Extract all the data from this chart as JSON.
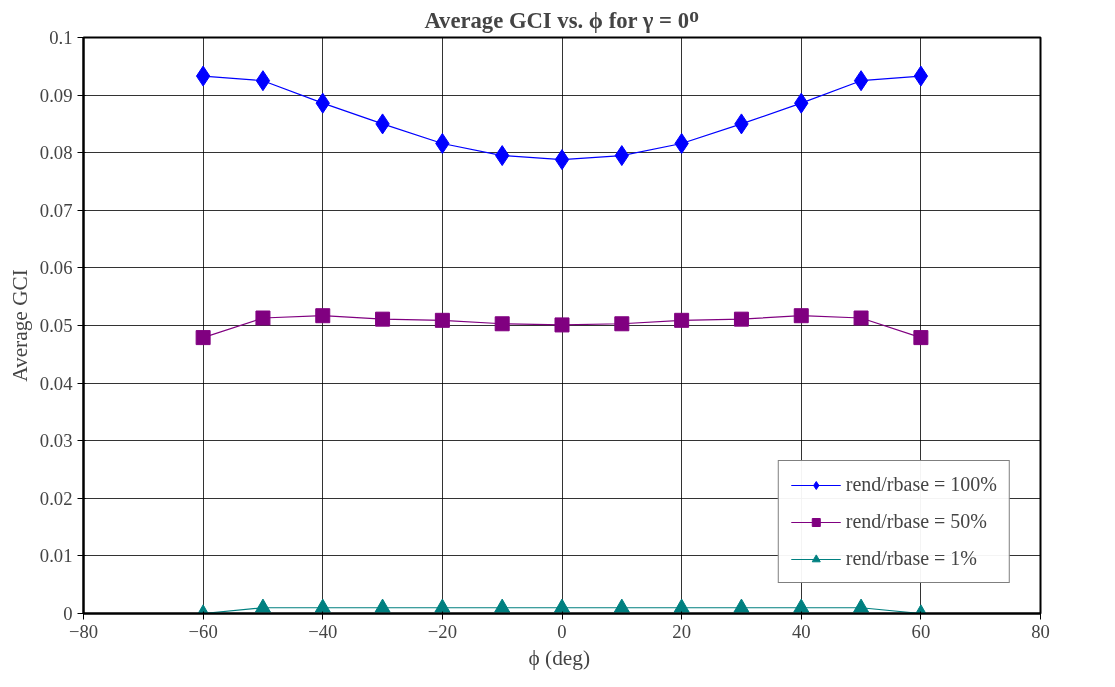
{
  "chart_data": {
    "type": "line",
    "title": "Average GCI vs. ϕ for γ = 0ᴼ",
    "xlabel": "ϕ  (deg)",
    "ylabel": "Average GCI",
    "x": [
      -60,
      -50,
      -40,
      -30,
      -20,
      -10,
      0,
      10,
      20,
      30,
      40,
      50,
      60
    ],
    "series": [
      {
        "name": "rend/rbase = 100%",
        "color": "#0000ff",
        "marker": "diamond",
        "values": [
          0.0933,
          0.0925,
          0.0886,
          0.085,
          0.0816,
          0.0795,
          0.0788,
          0.0795,
          0.0816,
          0.085,
          0.0886,
          0.0925,
          0.0933
        ]
      },
      {
        "name": "rend/rbase = 50%",
        "color": "#800080",
        "marker": "square",
        "values": [
          0.0479,
          0.0513,
          0.0517,
          0.0511,
          0.0509,
          0.0503,
          0.0501,
          0.0503,
          0.0509,
          0.0511,
          0.0517,
          0.0513,
          0.0479
        ]
      },
      {
        "name": "rend/rbase = 1%",
        "color": "#008080",
        "marker": "triangle",
        "values": [
          0,
          0.001,
          0.001,
          0.001,
          0.001,
          0.001,
          0.001,
          0.001,
          0.001,
          0.001,
          0.001,
          0.001,
          0
        ]
      }
    ],
    "xlim": [
      -80,
      80
    ],
    "xticks": [
      -80,
      -60,
      -40,
      -20,
      0,
      20,
      40,
      60,
      80
    ],
    "ylim": [
      0,
      0.1
    ],
    "yticks": [
      0,
      0.01,
      0.02,
      0.03,
      0.04,
      0.05,
      0.06,
      0.07,
      0.08,
      0.09,
      0.1
    ],
    "grid": true,
    "legend": "bottom right"
  }
}
